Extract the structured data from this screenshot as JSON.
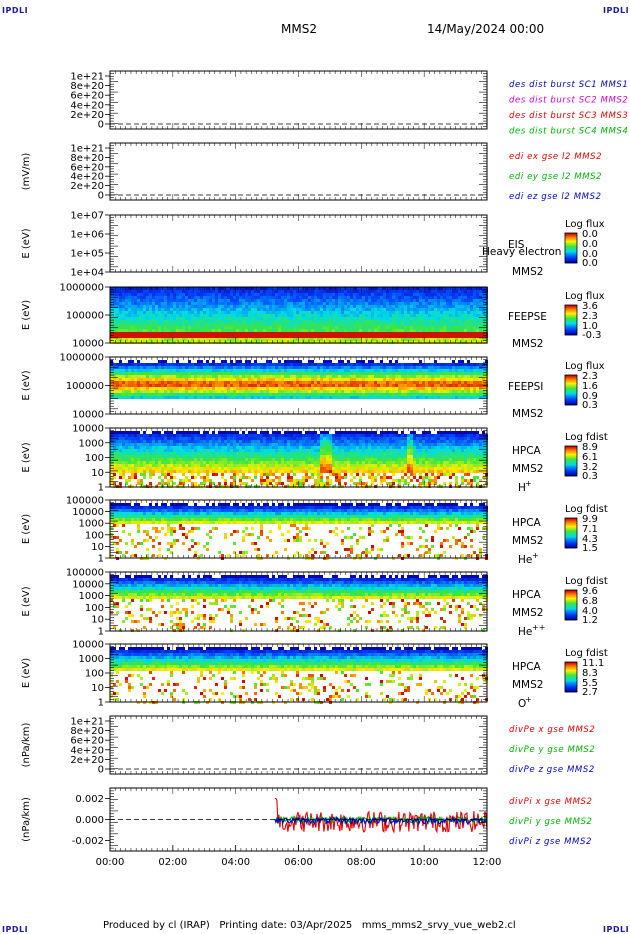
{
  "corner_label": "IPDLI",
  "header": {
    "spacecraft": "MMS2",
    "datetime": "14/May/2024 00:00"
  },
  "footer": {
    "produced_by": "Produced by cl (IRAP)",
    "printing_date": "Printing date: 03/Apr/2025",
    "filename": "mms_mms2_srvy_vue_web2.cl"
  },
  "colors": {
    "blue": "#0000c8",
    "magenta": "#d000d0",
    "red": "#e00000",
    "green": "#00b000"
  },
  "chart_data": {
    "type": "line",
    "x_axis": {
      "ticks": [
        "00:00",
        "02:00",
        "04:00",
        "06:00",
        "08:00",
        "10:00",
        "12:00"
      ],
      "range": [
        "00:00",
        "12:00"
      ]
    },
    "panels": [
      {
        "kind": "line",
        "ylabel": "",
        "yticks": [
          "1e+21",
          "8e+20",
          "6e+20",
          "4e+20",
          "2e+20",
          "0"
        ],
        "legend": [
          {
            "text": "des dist burst SC1 MMS1",
            "color": "#0000c8"
          },
          {
            "text": "des dist burst SC2 MMS2",
            "color": "#d000d0"
          },
          {
            "text": "des dist burst SC3 MMS3",
            "color": "#e00000"
          },
          {
            "text": "des dist burst SC4 MMS4",
            "color": "#00b000"
          }
        ]
      },
      {
        "kind": "line",
        "ylabel": "(mV/m)",
        "yticks": [
          "1e+21",
          "8e+20",
          "6e+20",
          "4e+20",
          "2e+20",
          "0"
        ],
        "legend": [
          {
            "text": "edi ex gse l2 MMS2",
            "color": "#e00000"
          },
          {
            "text": "edi ey gse l2 MMS2",
            "color": "#00b000"
          },
          {
            "text": "edi ez gse l2 MMS2",
            "color": "#0000c8"
          }
        ]
      },
      {
        "kind": "spectrogram",
        "ylabel": "E (eV)",
        "yticks": [
          "1e+07",
          "1e+06",
          "1e+05",
          "1e+04"
        ],
        "instrument": "EIS",
        "overlay_text": "Heavy electron to",
        "spacecraft": "MMS2",
        "species": "",
        "colorbar": {
          "title": "Log flux",
          "labels": [
            "0.0",
            "0.0",
            "0.0",
            "0.0"
          ]
        },
        "data_start": null
      },
      {
        "kind": "spectrogram",
        "ylabel": "E (eV)",
        "yticks": [
          "1000000",
          "100000",
          "10000"
        ],
        "instrument": "FEEPSE",
        "spacecraft": "MMS2",
        "species": "",
        "colorbar": {
          "title": "Log flux",
          "labels": [
            "3.6",
            "2.3",
            "1.0",
            "-0.3"
          ]
        },
        "data_start": "00:00"
      },
      {
        "kind": "spectrogram",
        "ylabel": "E (eV)",
        "yticks": [
          "1000000",
          "100000",
          "10000"
        ],
        "instrument": "FEEPSI",
        "spacecraft": "MMS2",
        "species": "",
        "colorbar": {
          "title": "Log flux",
          "labels": [
            "2.3",
            "1.6",
            "0.9",
            "0.3"
          ]
        },
        "data_start": "00:00"
      },
      {
        "kind": "spectrogram",
        "ylabel": "E (eV)",
        "yticks": [
          "10000",
          "1000",
          "100",
          "10",
          "1"
        ],
        "instrument": "HPCA",
        "spacecraft": "MMS2",
        "species": "H",
        "species_charge": "+",
        "colorbar": {
          "title": "Log fdist",
          "labels": [
            "8.9",
            "6.1",
            "3.2",
            "0.3"
          ]
        },
        "data_start": "00:00"
      },
      {
        "kind": "spectrogram",
        "ylabel": "E (eV)",
        "yticks": [
          "100000",
          "10000",
          "1000",
          "100",
          "10",
          "1"
        ],
        "instrument": "HPCA",
        "spacecraft": "MMS2",
        "species": "He",
        "species_charge": "+",
        "colorbar": {
          "title": "Log fdist",
          "labels": [
            "9.9",
            "7.1",
            "4.3",
            "1.5"
          ]
        },
        "data_start": "00:00"
      },
      {
        "kind": "spectrogram",
        "ylabel": "E (eV)",
        "yticks": [
          "100000",
          "10000",
          "1000",
          "100",
          "10",
          "1"
        ],
        "instrument": "HPCA",
        "spacecraft": "MMS2",
        "species": "He",
        "species_charge": "++",
        "colorbar": {
          "title": "Log fdist",
          "labels": [
            "9.6",
            "6.8",
            "4.0",
            "1.2"
          ]
        },
        "data_start": "00:00"
      },
      {
        "kind": "spectrogram",
        "ylabel": "E (eV)",
        "yticks": [
          "10000",
          "1000",
          "100",
          "10",
          "1"
        ],
        "instrument": "HPCA",
        "spacecraft": "MMS2",
        "species": "O",
        "species_charge": "+",
        "colorbar": {
          "title": "Log fdist",
          "labels": [
            "11.1",
            "8.3",
            "5.5",
            "2.7"
          ]
        },
        "data_start": "00:00"
      },
      {
        "kind": "line",
        "ylabel": "(nPa/km)",
        "yticks": [
          "1e+21",
          "8e+20",
          "6e+20",
          "4e+20",
          "2e+20",
          "0"
        ],
        "legend": [
          {
            "text": "divPe x gse MMS2",
            "color": "#e00000"
          },
          {
            "text": "divPe y gse MMS2",
            "color": "#00b000"
          },
          {
            "text": "divPe z gse MMS2",
            "color": "#0000c8"
          }
        ]
      },
      {
        "kind": "line",
        "ylabel": "(nPa/km)",
        "yticks": [
          "0.002",
          "0.000",
          "-0.002"
        ],
        "ylim": [
          -0.003,
          0.003
        ],
        "legend": [
          {
            "text": "divPi x gse MMS2",
            "color": "#e00000"
          },
          {
            "text": "divPi y gse MMS2",
            "color": "#00b000"
          },
          {
            "text": "divPi z gse MMS2",
            "color": "#0000c8"
          }
        ],
        "data_start": "05:15",
        "series": [
          {
            "name": "divPi x gse MMS2",
            "color": "#e00000",
            "typical_range": [
              -0.0012,
              0.0008
            ]
          },
          {
            "name": "divPi y gse MMS2",
            "color": "#00b000",
            "typical_range": [
              -0.0003,
              0.0003
            ]
          },
          {
            "name": "divPi z gse MMS2",
            "color": "#0000c8",
            "typical_range": [
              -0.0004,
              0.0002
            ]
          }
        ]
      }
    ]
  }
}
